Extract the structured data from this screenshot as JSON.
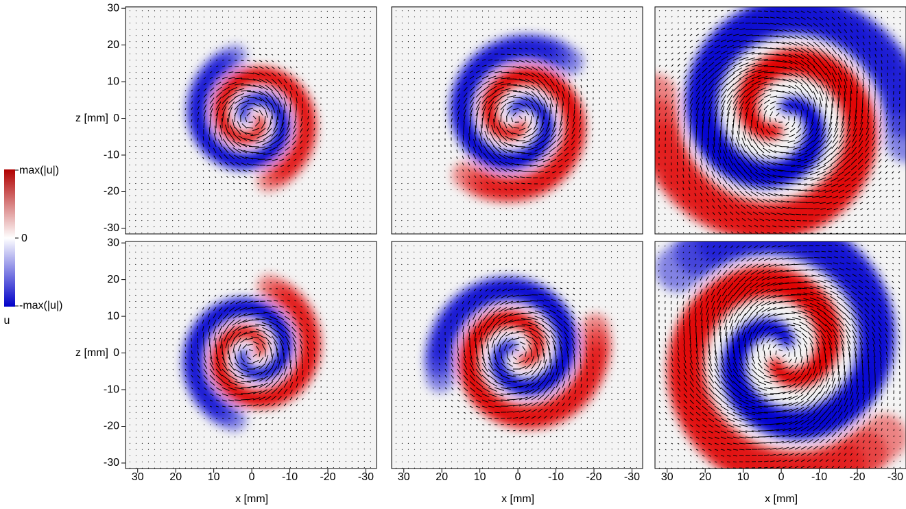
{
  "chart_data": {
    "type": "heatmap",
    "xlabel": "x [mm]",
    "ylabel": "z [mm]",
    "xlim": [
      33.2,
      -32.8
    ],
    "ylim": [
      -31.5,
      30.4
    ],
    "xticks": [
      30,
      20,
      10,
      0,
      -10,
      -20,
      -30
    ],
    "yticks": [
      30,
      20,
      10,
      0,
      -10,
      -20,
      -30
    ],
    "colorbar": {
      "title": "u",
      "labels": [
        "max(|u|)",
        "0",
        "-max(|u|)"
      ],
      "colors": [
        "#b00000",
        "#ffffff",
        "#0000c8"
      ]
    }
  }
}
